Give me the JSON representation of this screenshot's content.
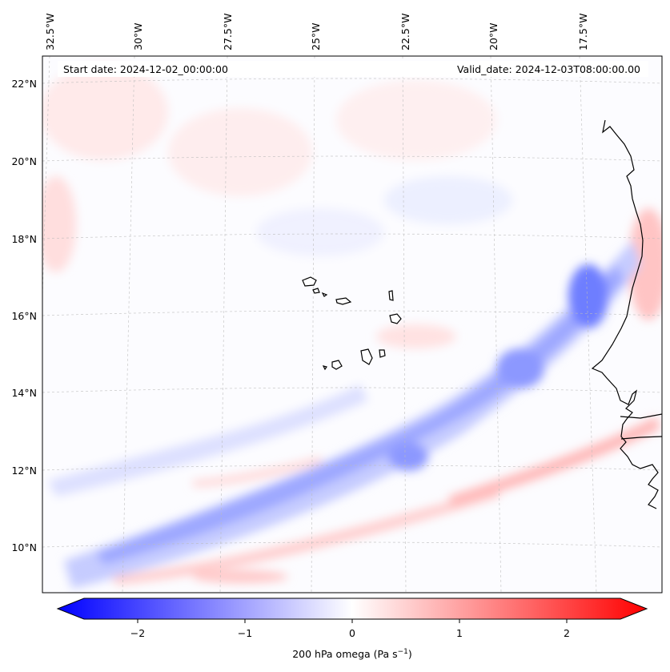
{
  "map": {
    "title_start": "Start date: 2024-12-02_00:00:00",
    "title_valid": "Valid_date: 2024-12-03T08:00:00.00",
    "lat_labels": [
      "22°N",
      "20°N",
      "18°N",
      "16°N",
      "14°N",
      "12°N",
      "10°N"
    ],
    "lon_labels": [
      "32.5°W",
      "30°W",
      "27.5°W",
      "25°W",
      "22.5°W",
      "20°W",
      "17.5°W"
    ],
    "features": [
      "Cape Verde islands",
      "West African coastline"
    ]
  },
  "colorbar": {
    "label_main": "200 hPa omega (Pa s",
    "label_exp": "−1",
    "label_close": ")",
    "ticks": [
      "−2",
      "−1",
      "0",
      "1",
      "2"
    ],
    "tick_values": [
      -2,
      -1,
      0,
      1,
      2
    ],
    "range": [
      -2.6,
      2.6
    ],
    "colors": {
      "negative": "#0000ff",
      "zero": "#ffffff",
      "positive": "#ff0000"
    }
  }
}
